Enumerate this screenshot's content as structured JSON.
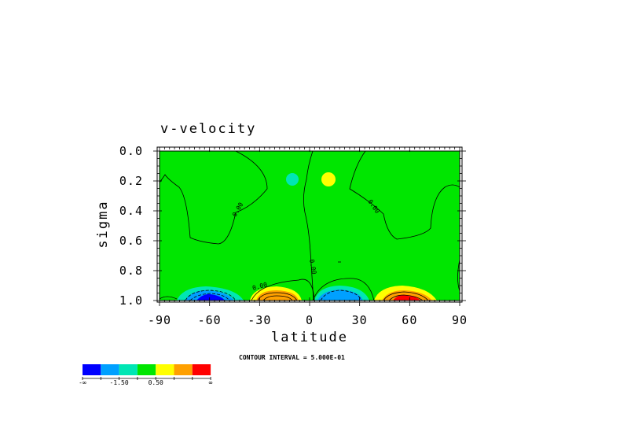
{
  "chart_data": {
    "type": "contour",
    "title": "v-velocity",
    "xlabel": "latitude",
    "ylabel": "sigma",
    "xlim": [
      -90,
      90
    ],
    "ylim": [
      1.0,
      0.0
    ],
    "x_ticks": [
      "-90",
      "-60",
      "-30",
      "0",
      "30",
      "60",
      "90"
    ],
    "y_ticks": [
      "0.0",
      "0.2",
      "0.4",
      "0.6",
      "0.8",
      "1.0"
    ],
    "contour_interval_label": "CONTOUR INTERVAL = 5.000E-01",
    "contour_labels": [
      "0.00",
      "0.00",
      "0.00",
      "0.00"
    ],
    "colorbar": {
      "colors": [
        "#0000ff",
        "#00a0ff",
        "#00e6b4",
        "#00e600",
        "#ffff00",
        "#ffa000",
        "#ff0000"
      ],
      "tick_labels": [
        "-∞",
        "-1.50",
        "0.50",
        "∞"
      ]
    },
    "features": [
      {
        "lat": -57,
        "sigma": 0.99,
        "value": "min",
        "color": "#0000ff"
      },
      {
        "lat": -15,
        "sigma": 0.98,
        "value": "max",
        "color": "#ffa000"
      },
      {
        "lat": 15,
        "sigma": 0.98,
        "value": "min",
        "color": "#00a0ff"
      },
      {
        "lat": 57,
        "sigma": 0.99,
        "value": "max",
        "color": "#ff0000"
      },
      {
        "lat": -12,
        "sigma": 0.21,
        "value": "negative",
        "color": "#00e6b4"
      },
      {
        "lat": 11,
        "sigma": 0.21,
        "value": "positive",
        "color": "#ffff00"
      }
    ]
  }
}
